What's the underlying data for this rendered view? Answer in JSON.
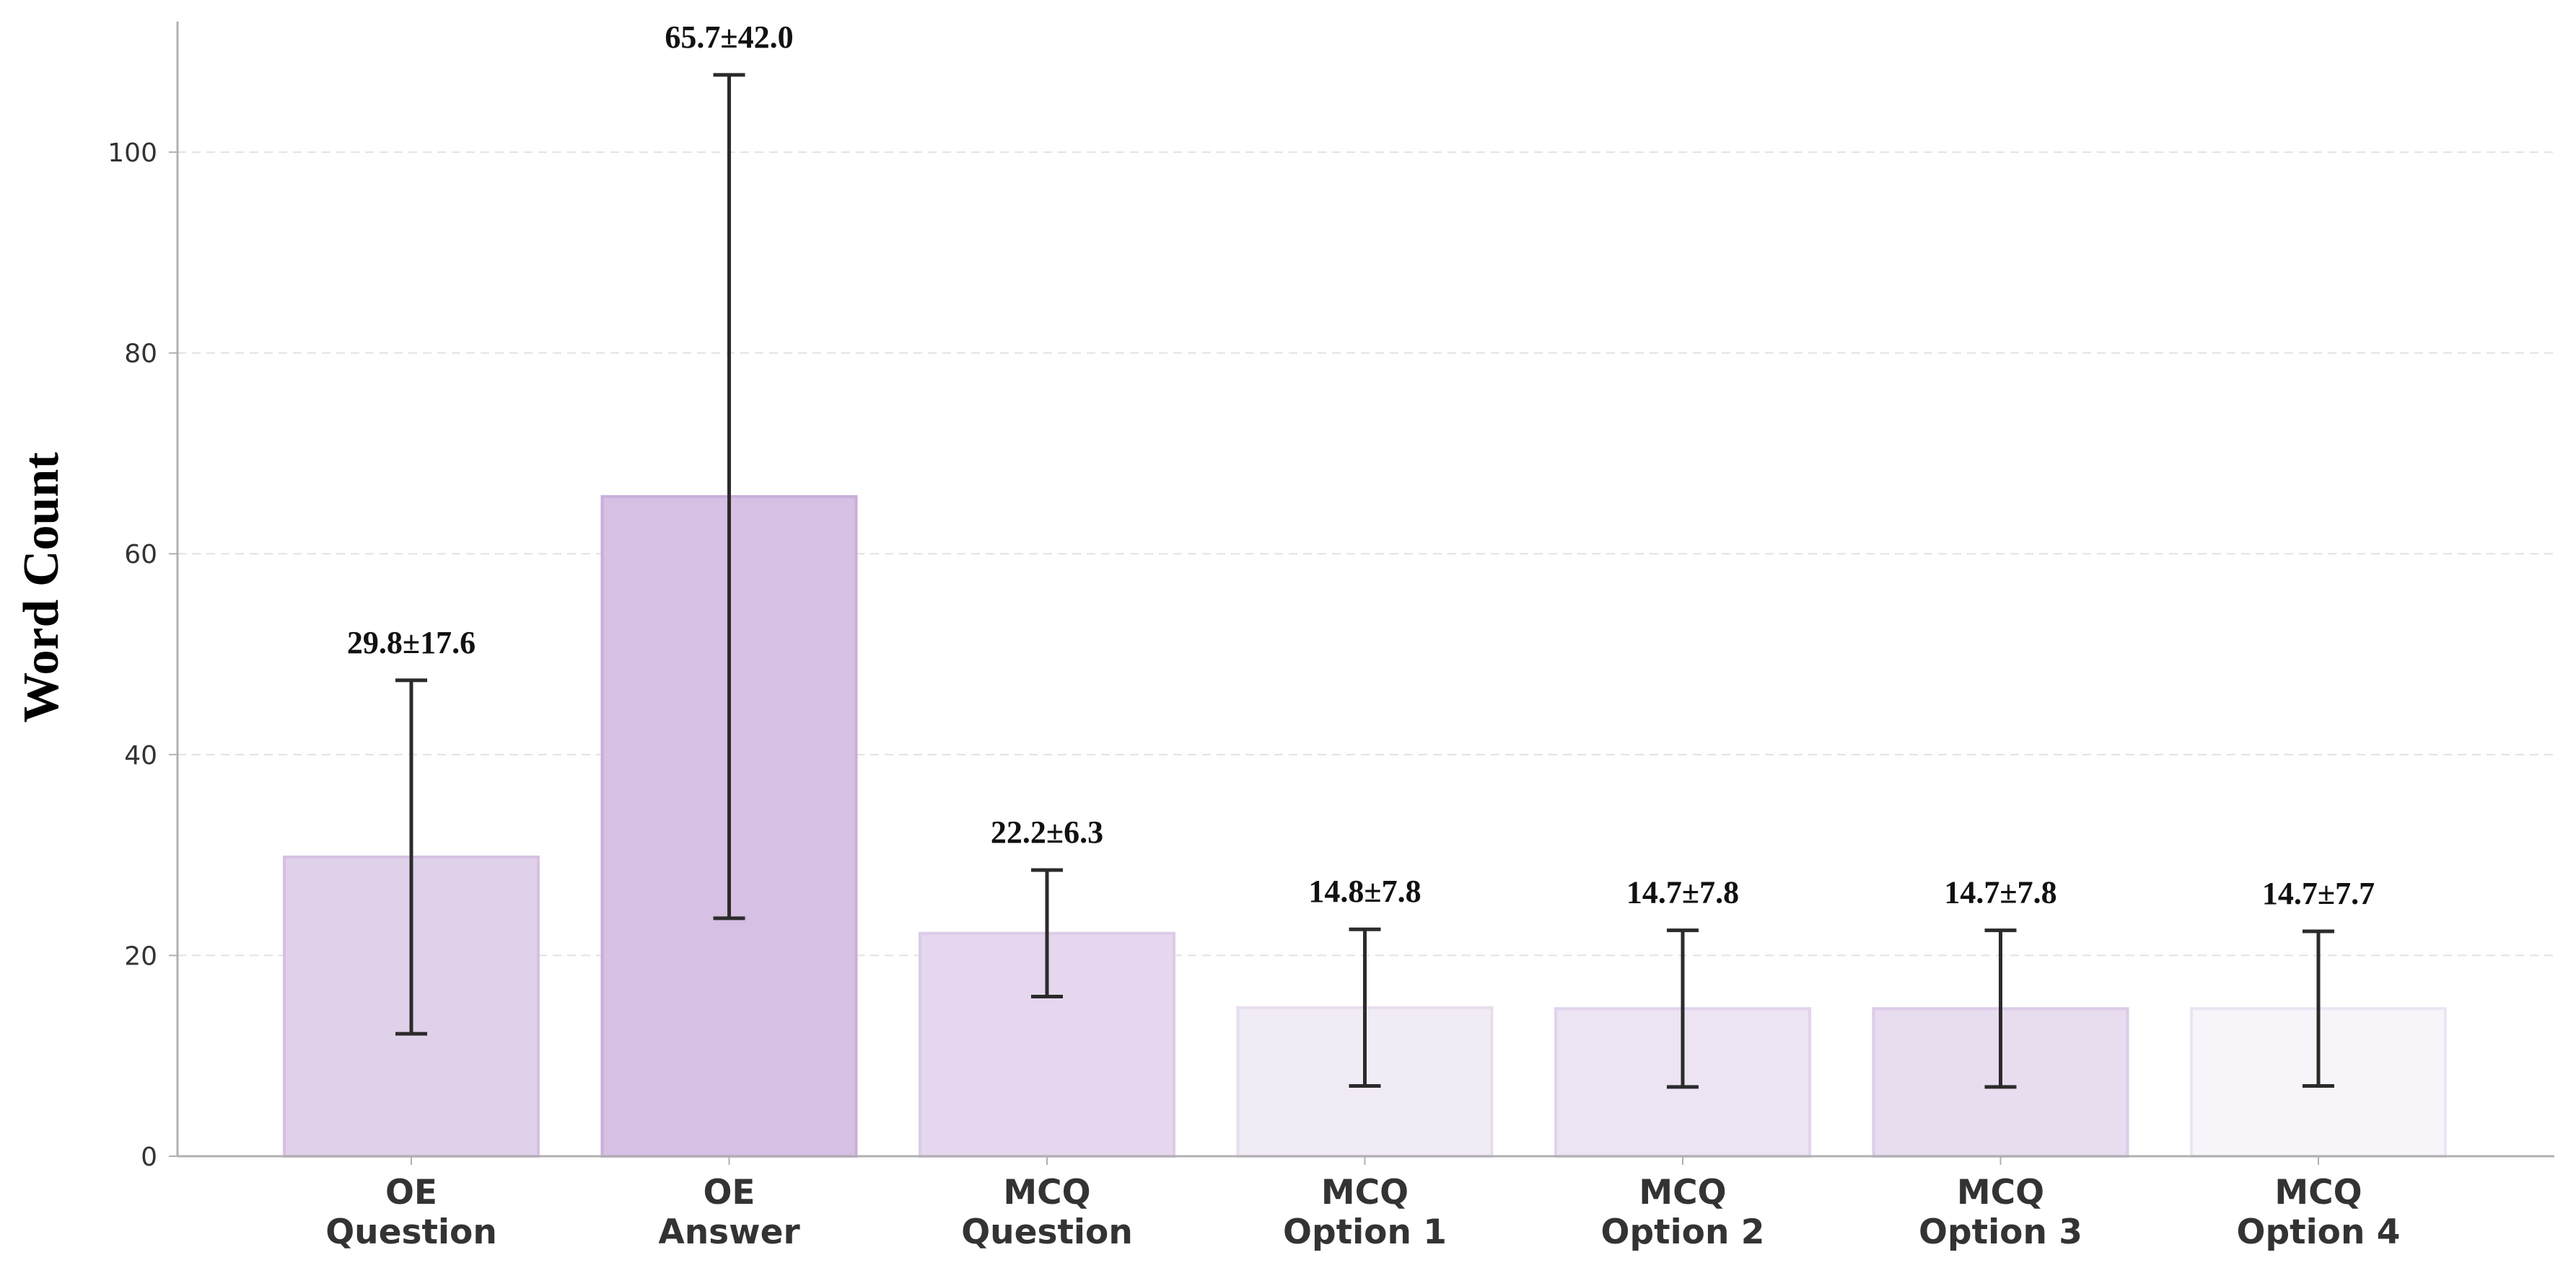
{
  "chart_data": {
    "type": "bar",
    "ylabel": "Word Count",
    "xlabel": "",
    "ylim": [
      0,
      113
    ],
    "yticks": [
      0,
      20,
      40,
      60,
      80,
      100
    ],
    "grid": "horizontal dashed",
    "categories": [
      [
        "OE",
        "Question"
      ],
      [
        "OE",
        "Answer"
      ],
      [
        "MCQ",
        "Question"
      ],
      [
        "MCQ",
        "Option 1"
      ],
      [
        "MCQ",
        "Option 2"
      ],
      [
        "MCQ",
        "Option 3"
      ],
      [
        "MCQ",
        "Option 4"
      ]
    ],
    "values": [
      29.8,
      65.7,
      22.2,
      14.8,
      14.7,
      14.7,
      14.7
    ],
    "errors": [
      17.6,
      42.0,
      6.3,
      7.8,
      7.8,
      7.8,
      7.7
    ],
    "value_labels": [
      "29.8±17.6",
      "65.7±42.0",
      "22.2±6.3",
      "14.8±7.8",
      "14.7±7.8",
      "14.7±7.8",
      "14.7±7.7"
    ],
    "colors": {
      "bar_fills": [
        "#e0d1ea",
        "#d6c0e3",
        "#e5d8ee",
        "#f1ebf5",
        "#ede4f3",
        "#e8ddef",
        "#f8f5fa"
      ],
      "bar_strokes": [
        "#d6c0e3",
        "#c9aedb",
        "#dccbe8",
        "#e8ddef",
        "#e2d3ec",
        "#dccbe8",
        "#ece4f2"
      ],
      "error_bar": "#2b2b2b",
      "axis": "#b0b0b0",
      "grid": "#e2e2e2"
    }
  }
}
